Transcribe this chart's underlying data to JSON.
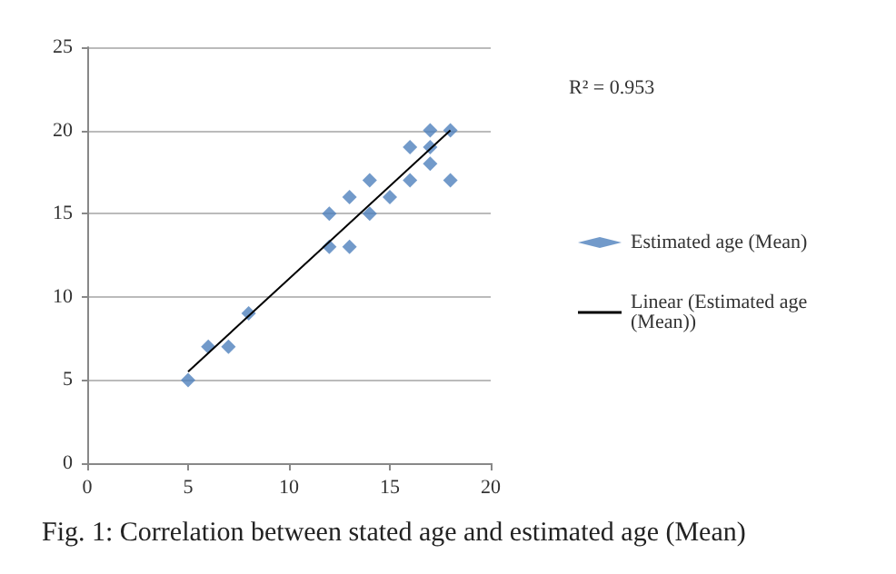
{
  "chart_data": {
    "type": "scatter",
    "title": "Fig. 1: Correlation between stated age and estimated age (Mean)",
    "annotations": [
      "R² = 0.953"
    ],
    "series": [
      {
        "name": "Estimated age (Mean)",
        "color": "#4f81bd",
        "marker": "diamond",
        "x": [
          5,
          6,
          7,
          8,
          12,
          12,
          13,
          13,
          14,
          14,
          15,
          16,
          16,
          17,
          17,
          17,
          18,
          18
        ],
        "values": [
          5,
          7,
          7,
          9,
          15,
          13,
          16,
          13,
          17,
          15,
          16,
          19,
          17,
          20,
          19,
          18,
          20,
          17
        ]
      },
      {
        "name": "Linear (Estimated age (Mean))",
        "type": "line",
        "color": "#000000",
        "marker": "none",
        "x": [
          5,
          18
        ],
        "values": [
          5.5,
          20
        ]
      }
    ],
    "xlim": [
      0,
      20
    ],
    "xticks": [
      0,
      5,
      10,
      15,
      20
    ],
    "ylim": [
      0,
      25
    ],
    "yticks": [
      0,
      5,
      10,
      15,
      20,
      25
    ],
    "grid": "y",
    "legend": "right"
  }
}
